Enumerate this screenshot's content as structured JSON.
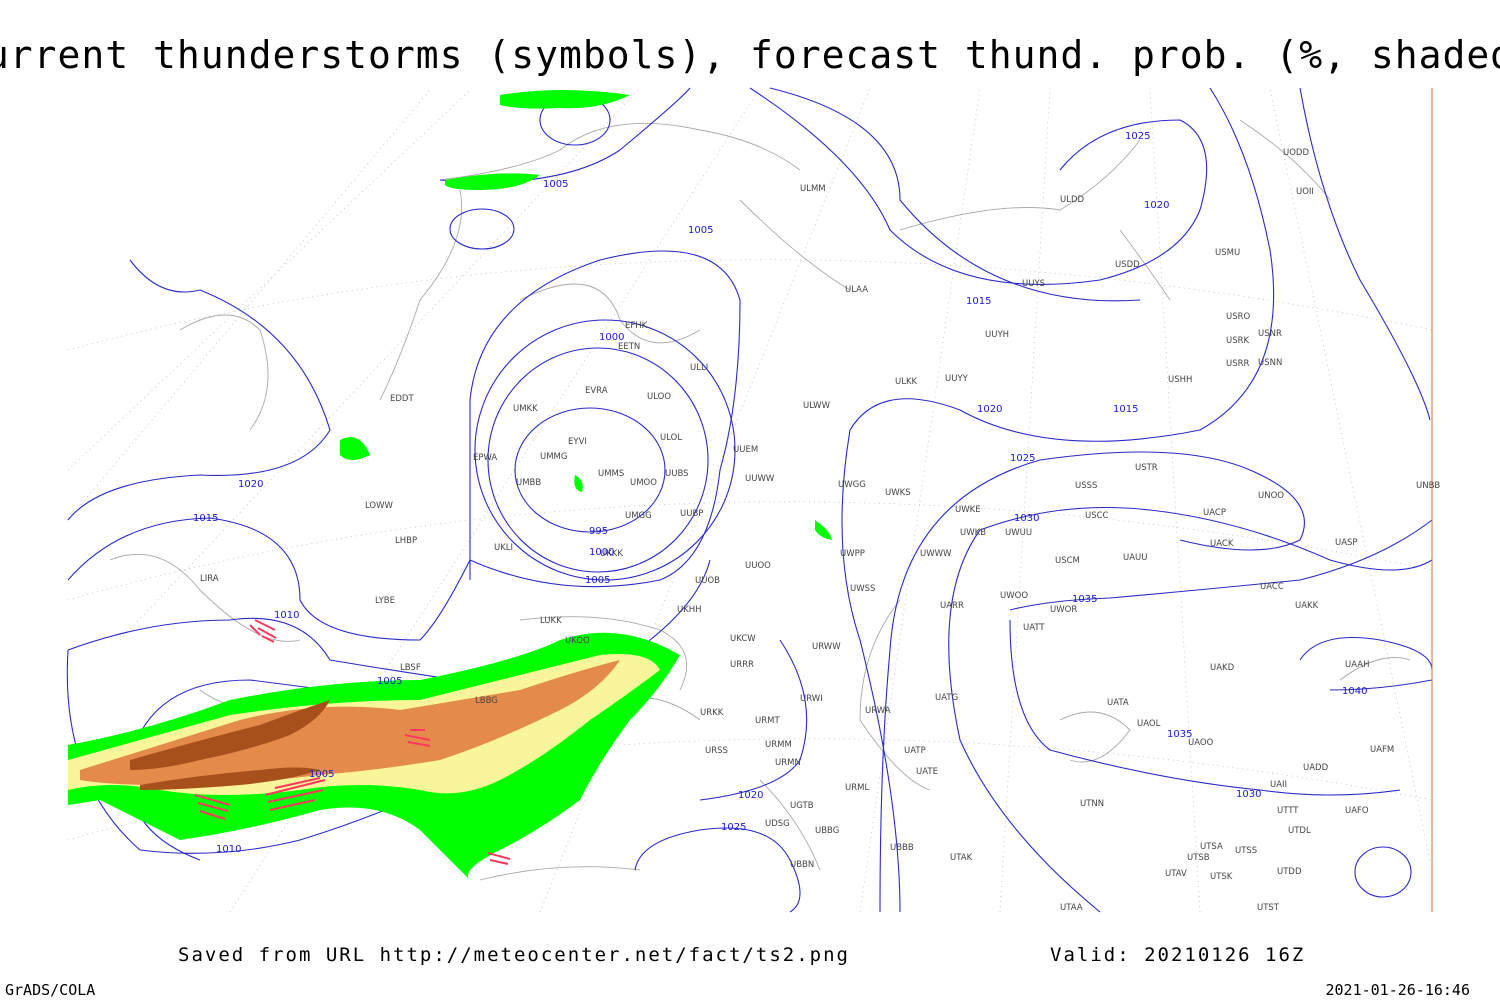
{
  "title": "Current thunderstorms (symbols), forecast thund. prob. (%, shaded)",
  "footer": {
    "saved": "Saved from URL http://meteocenter.net/fact/ts2.png",
    "valid": "Valid: 20210126 16Z",
    "software": "GrADS/COLA",
    "timestamp": "2021-01-26-16:46"
  },
  "isobar_labels": [
    1005,
    1005,
    1025,
    1020,
    1015,
    1000,
    1015,
    1020,
    1025,
    1020,
    1015,
    995,
    1000,
    1030,
    1005,
    1035,
    1010,
    1005,
    1040,
    1035,
    1005,
    1030,
    1020,
    1025,
    1010
  ],
  "stations": [
    "ULMM",
    "ULDD",
    "USDD",
    "UODD",
    "UOII",
    "USMU",
    "UUYS",
    "ULAA",
    "USRO",
    "USRK",
    "USNR",
    "USRR",
    "USNN",
    "UUYH",
    "USHH",
    "ULKK",
    "UUYY",
    "ULWW",
    "EFHK",
    "EETN",
    "ULLI",
    "EVRA",
    "ULOO",
    "UMKK",
    "EDDT",
    "ULOL",
    "EYVI",
    "UMMG",
    "UUEM",
    "EPWA",
    "UMMS",
    "UMOO",
    "UUBS",
    "UUWW",
    "UWGG",
    "UWKS",
    "USSS",
    "USTR",
    "UNOO",
    "UNBB",
    "UMBB",
    "UMGG",
    "UUBP",
    "UWKE",
    "UWKB",
    "UWUU",
    "USCC",
    "UACP",
    "LOWW",
    "LHBP",
    "UKLI",
    "UKKK",
    "UWPP",
    "UWWW",
    "UACK",
    "UASP",
    "UUOO",
    "USCM",
    "UAUU",
    "LIRA",
    "UUOB",
    "LYBE",
    "UKHH",
    "UWSS",
    "UARR",
    "UWOO",
    "UWOR",
    "UACC",
    "UAKK",
    "LUKK",
    "UKOO",
    "UKCW",
    "URWW",
    "UATT",
    "LBSF",
    "URRR",
    "UAKD",
    "UAAH",
    "URWI",
    "UATG",
    "UATA",
    "LBBG",
    "URKK",
    "URMT",
    "URWA",
    "UAOL",
    "UAOO",
    "UAFM",
    "URSS",
    "URMM",
    "URMN",
    "UATP",
    "UATE",
    "UADD",
    "UGTB",
    "URML",
    "UAII",
    "UTNN",
    "UTTT",
    "UAFO",
    "UDSG",
    "UBBG",
    "UTDL",
    "UBBB",
    "UTAK",
    "UTSA",
    "UTSS",
    "UTSB",
    "UBBN",
    "UTAV",
    "UTSK",
    "UTDD",
    "UTAA",
    "UTST"
  ]
}
